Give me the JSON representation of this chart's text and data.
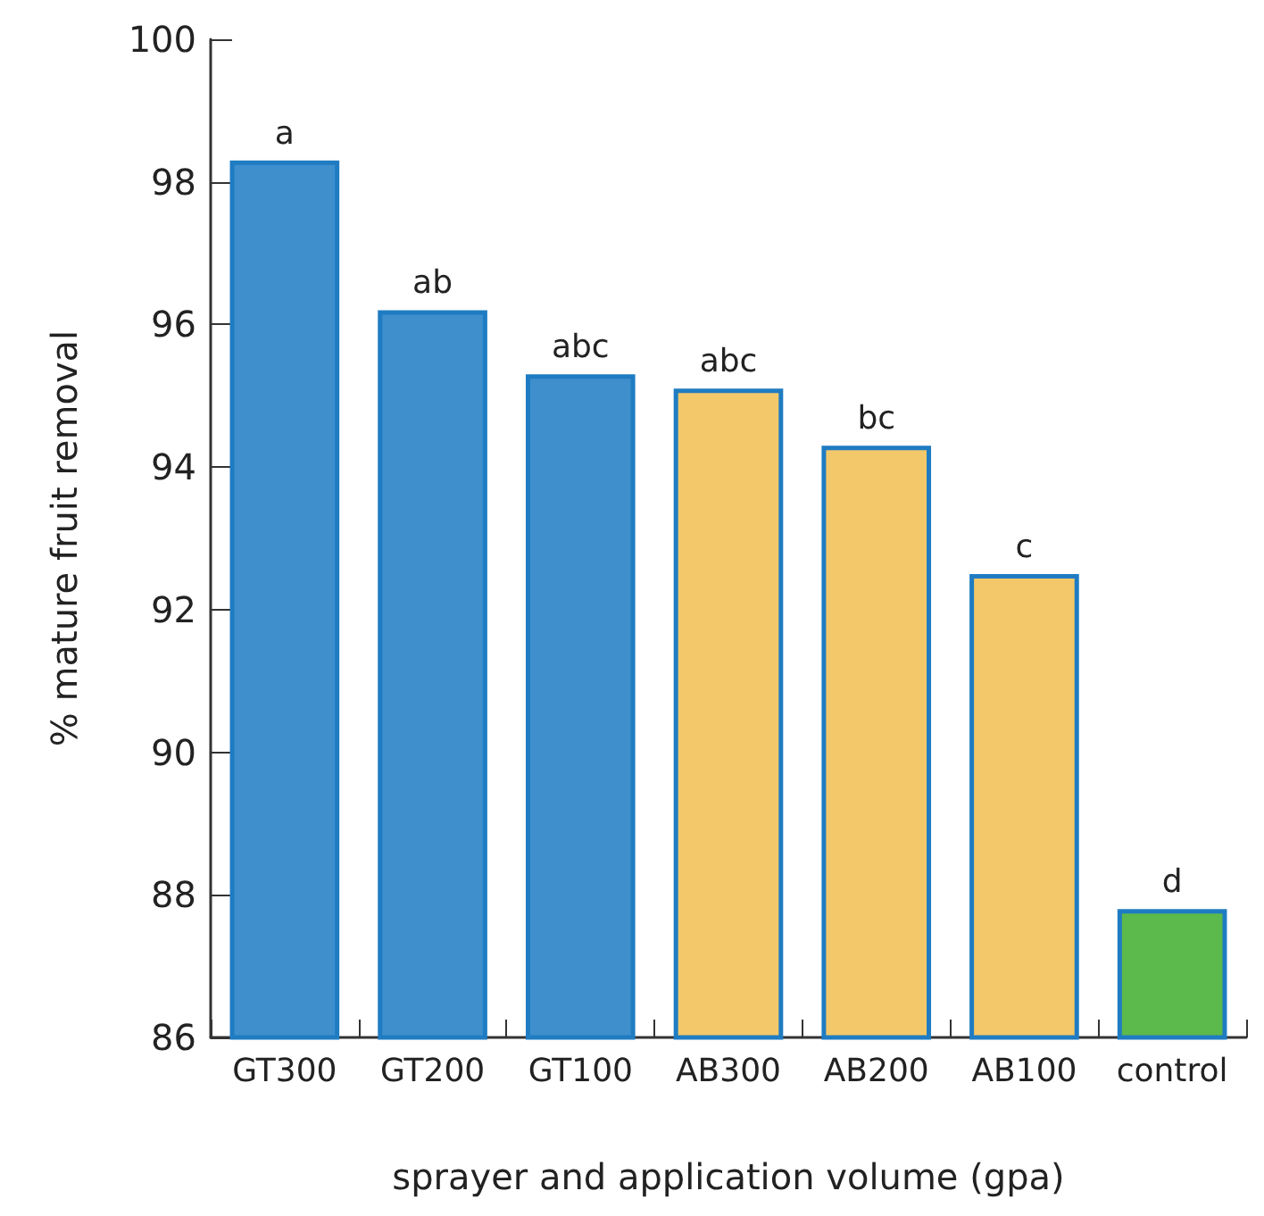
{
  "chart_data": {
    "type": "bar",
    "xlabel": "sprayer and application volume (gpa)",
    "ylabel": "% mature fruit removal",
    "categories": [
      "GT300",
      "GT200",
      "GT100",
      "AB300",
      "AB200",
      "AB100",
      "control"
    ],
    "values": [
      98.3,
      96.2,
      95.3,
      95.1,
      94.3,
      92.5,
      87.8
    ],
    "colors": [
      "#3f8fcd",
      "#3f8fcd",
      "#3f8fcd",
      "#f3c86a",
      "#f3c86a",
      "#f3c86a",
      "#5cb94c"
    ],
    "ylim": [
      86,
      100
    ],
    "yticks": [
      86,
      88,
      90,
      92,
      94,
      96,
      98,
      100
    ],
    "grid": false,
    "annotations": [
      {
        "text": "a",
        "x": "GT300",
        "y": 98.3
      },
      {
        "text": "ab",
        "x": "GT200",
        "y": 96.2
      },
      {
        "text": "abc",
        "x": "GT100",
        "y": 95.3
      },
      {
        "text": "abc",
        "x": "AB300",
        "y": 95.1
      },
      {
        "text": "bc",
        "x": "AB200",
        "y": 94.3
      },
      {
        "text": "c",
        "x": "AB100",
        "y": 92.5
      },
      {
        "text": "d",
        "x": "control",
        "y": 87.8
      }
    ]
  }
}
